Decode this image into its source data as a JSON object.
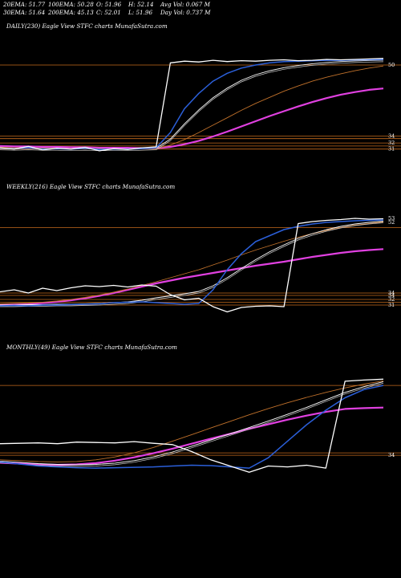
{
  "header": {
    "ema20": "20EMA: 51.77",
    "ema100": "100EMA: 50.28",
    "open": "O: 51.96",
    "high": "H: 52.14",
    "avg_vol": "Avg Vol: 0.067 M",
    "ema30": "30EMA: 51.64",
    "ema200": "200EMA: 45.13",
    "close": "C: 52.01",
    "low": "L: 51.96",
    "day_vol": "Day Vol: 0.737 M"
  },
  "colors": {
    "background": "#000000",
    "price": "#ffffff",
    "ema_short": "#2b5fd9",
    "ema_mid": "#ffffff",
    "ema_long": "#c0712b",
    "ema_200": "#e040e0",
    "level_line": "#c56a1c"
  },
  "chart_data": [
    {
      "type": "line",
      "title": "DAILY(230) Eagle  View  STFC charts MunafaSutra.com",
      "level_labels": [
        "50",
        "34",
        "32",
        "31"
      ],
      "series": [
        {
          "key": "price",
          "values": [
            31.5,
            31.2,
            31.8,
            31.0,
            31.4,
            31.2,
            31.6,
            30.8,
            31.3,
            31.1,
            31.5,
            31.7,
            51.0,
            51.4,
            51.2,
            51.6,
            51.3,
            51.5,
            51.4,
            51.6,
            51.7,
            51.5,
            51.6,
            51.8,
            51.7,
            51.8,
            51.9,
            52.01
          ]
        },
        {
          "key": "ema_short",
          "values": [
            31.4,
            31.3,
            31.5,
            31.2,
            31.3,
            31.2,
            31.4,
            31.1,
            31.2,
            31.2,
            31.3,
            31.5,
            35.0,
            40.5,
            44.0,
            46.8,
            48.6,
            49.8,
            50.5,
            51.0,
            51.3,
            51.4,
            51.5,
            51.6,
            51.6,
            51.7,
            51.75,
            51.77
          ]
        },
        {
          "key": "ema_mid",
          "values": [
            31.4,
            31.3,
            31.4,
            31.3,
            31.3,
            31.2,
            31.3,
            31.2,
            31.2,
            31.2,
            31.3,
            31.4,
            33.5,
            37.0,
            40.2,
            43.0,
            45.2,
            47.0,
            48.3,
            49.2,
            49.9,
            50.4,
            50.8,
            51.1,
            51.3,
            51.45,
            51.55,
            51.64
          ]
        },
        {
          "key": "ema_long",
          "values": [
            31.6,
            31.5,
            31.5,
            31.4,
            31.4,
            31.3,
            31.3,
            31.3,
            31.2,
            31.2,
            31.2,
            31.3,
            32.1,
            33.4,
            35.0,
            36.7,
            38.4,
            40.1,
            41.7,
            43.1,
            44.5,
            45.7,
            46.8,
            47.7,
            48.5,
            49.2,
            49.8,
            50.28
          ]
        },
        {
          "key": "ema_200",
          "values": [
            31.9,
            31.8,
            31.8,
            31.7,
            31.7,
            31.6,
            31.6,
            31.5,
            31.5,
            31.5,
            31.4,
            31.4,
            31.7,
            32.3,
            33.1,
            34.1,
            35.2,
            36.4,
            37.6,
            38.8,
            39.9,
            41.0,
            42.0,
            42.9,
            43.7,
            44.3,
            44.8,
            45.13
          ]
        }
      ]
    },
    {
      "type": "line",
      "title": "WEEKLY(216) Eagle  View  STFC charts MunafaSutra.com",
      "level_labels": [
        "53",
        "52",
        "34",
        "34",
        "32",
        "31"
      ],
      "series": [
        {
          "key": "price",
          "values": [
            34.5,
            35.0,
            34.2,
            35.4,
            34.8,
            35.5,
            36.0,
            35.8,
            36.1,
            35.7,
            36.2,
            35.9,
            33.8,
            32.5,
            32.9,
            30.8,
            29.5,
            30.6,
            30.9,
            31.0,
            30.8,
            51.5,
            52.0,
            52.3,
            52.5,
            52.8,
            52.6,
            52.7
          ]
        },
        {
          "key": "ema_short",
          "values": [
            31.0,
            31.1,
            31.0,
            31.2,
            31.2,
            31.3,
            31.4,
            31.5,
            31.8,
            31.9,
            32.0,
            31.8,
            31.6,
            31.4,
            31.6,
            35.0,
            40.0,
            44.0,
            47.0,
            48.5,
            50.0,
            50.8,
            51.4,
            51.8,
            52.0,
            52.2,
            52.3,
            52.4
          ]
        },
        {
          "key": "ema_mid",
          "values": [
            31.2,
            31.2,
            31.3,
            31.3,
            31.4,
            31.4,
            31.5,
            31.6,
            31.8,
            32.0,
            32.4,
            33.0,
            33.5,
            34.0,
            34.6,
            36.0,
            38.0,
            40.3,
            42.5,
            44.5,
            46.2,
            47.8,
            49.0,
            50.0,
            50.8,
            51.4,
            51.8,
            52.1
          ]
        },
        {
          "key": "ema_long",
          "values": [
            31.5,
            31.6,
            31.7,
            31.9,
            32.2,
            32.6,
            33.1,
            33.7,
            34.4,
            35.2,
            36.1,
            37.0,
            38.0,
            39.0,
            40.0,
            41.2,
            42.4,
            43.7,
            44.9,
            46.0,
            47.1,
            48.1,
            49.0,
            49.8,
            50.5,
            51.1,
            51.5,
            51.9
          ]
        },
        {
          "key": "ema_200",
          "values": [
            31.3,
            31.4,
            31.5,
            31.7,
            32.0,
            32.4,
            32.9,
            33.5,
            34.2,
            35.0,
            35.8,
            36.6,
            37.3,
            38.0,
            38.6,
            39.2,
            39.8,
            40.4,
            41.0,
            41.5,
            42.0,
            42.6,
            43.2,
            43.7,
            44.2,
            44.6,
            44.9,
            45.13
          ]
        }
      ]
    },
    {
      "type": "line",
      "title": "MONTHLY(49) Eagle  View  STFC charts MunafaSutra.com",
      "level_labels": [
        "34"
      ],
      "series": [
        {
          "key": "price",
          "values": [
            36.4,
            36.5,
            36.6,
            36.4,
            36.8,
            36.7,
            36.6,
            36.9,
            36.5,
            36.2,
            34.5,
            32.5,
            31.0,
            29.5,
            31.0,
            30.8,
            31.2,
            30.5,
            51.5,
            51.8,
            52.01
          ]
        },
        {
          "key": "ema_short",
          "values": [
            32.0,
            31.5,
            31.0,
            30.8,
            30.6,
            30.5,
            30.6,
            30.7,
            30.8,
            31.0,
            31.2,
            31.1,
            30.8,
            30.5,
            33.0,
            37.0,
            41.0,
            44.5,
            47.5,
            49.5,
            50.5
          ]
        },
        {
          "key": "ema_mid",
          "values": [
            32.2,
            31.9,
            31.6,
            31.4,
            31.3,
            31.4,
            31.7,
            32.3,
            33.2,
            34.4,
            35.8,
            37.3,
            38.8,
            40.3,
            41.9,
            43.5,
            45.2,
            47.0,
            48.8,
            50.2,
            51.4
          ]
        },
        {
          "key": "ema_long",
          "values": [
            32.5,
            32.3,
            32.1,
            32.0,
            32.1,
            32.5,
            33.2,
            34.2,
            35.5,
            37.0,
            38.6,
            40.2,
            41.8,
            43.4,
            44.9,
            46.3,
            47.6,
            48.8,
            49.9,
            50.8,
            51.6
          ]
        },
        {
          "key": "ema_200",
          "values": [
            31.8,
            31.6,
            31.4,
            31.3,
            31.4,
            31.7,
            32.3,
            33.1,
            34.1,
            35.2,
            36.4,
            37.6,
            38.8,
            40.0,
            41.1,
            42.2,
            43.2,
            44.1,
            44.8,
            45.0,
            45.13
          ]
        }
      ]
    }
  ]
}
